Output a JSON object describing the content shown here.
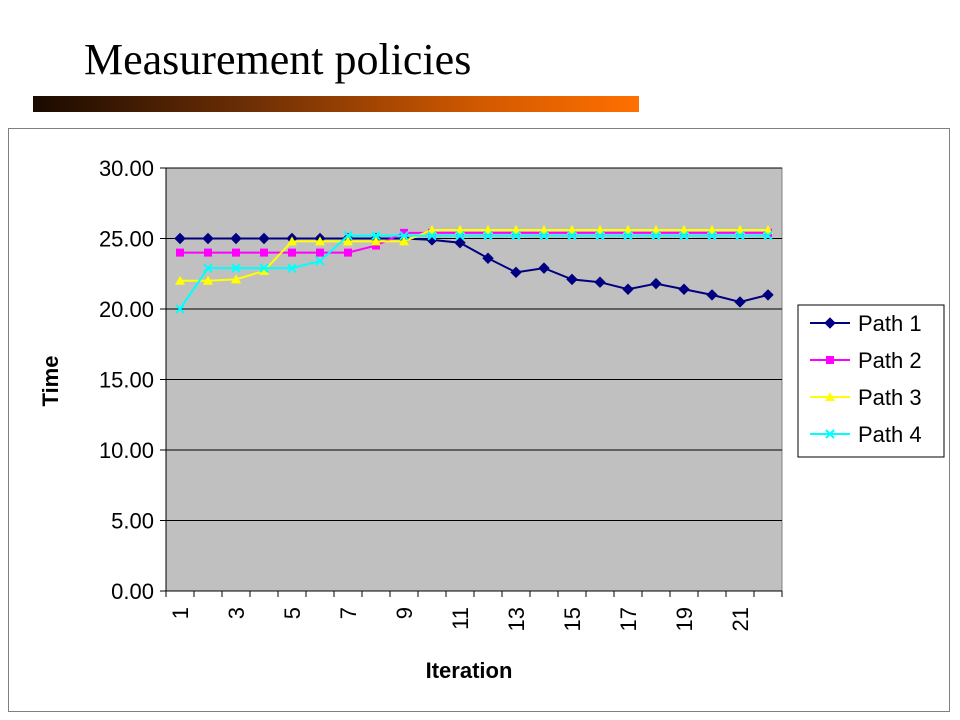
{
  "slide": {
    "title": "Measurement policies"
  },
  "colors": {
    "plot_background": "#C0C0C0",
    "title_bar_start": "#1a0a00",
    "title_bar_end": "#ff7000"
  },
  "chart_data": {
    "type": "line",
    "title": "",
    "xlabel": "Iteration",
    "ylabel": "Time",
    "ylim": [
      0,
      30
    ],
    "y_ticks": [
      "0.00",
      "5.00",
      "10.00",
      "15.00",
      "20.00",
      "25.00",
      "30.00"
    ],
    "x": [
      1,
      2,
      3,
      4,
      5,
      6,
      7,
      8,
      9,
      10,
      11,
      12,
      13,
      14,
      15,
      16,
      17,
      18,
      19,
      20,
      21,
      22
    ],
    "x_tick_labels": [
      "1",
      "3",
      "5",
      "7",
      "9",
      "11",
      "13",
      "15",
      "17",
      "19",
      "21"
    ],
    "grid": "horizontal",
    "legend_position": "right",
    "series": [
      {
        "name": "Path 1",
        "color": "#000080",
        "marker": "diamond",
        "values": [
          25.0,
          25.0,
          25.0,
          25.0,
          25.0,
          25.0,
          25.0,
          25.0,
          25.0,
          24.9,
          24.7,
          23.6,
          22.6,
          22.9,
          22.1,
          21.9,
          21.4,
          21.8,
          21.4,
          21.0,
          20.5,
          21.0
        ]
      },
      {
        "name": "Path 2",
        "color": "#FF00FF",
        "marker": "square",
        "values": [
          24.0,
          24.0,
          24.0,
          24.0,
          24.0,
          24.0,
          24.0,
          24.5,
          25.4,
          25.4,
          25.4,
          25.4,
          25.4,
          25.4,
          25.4,
          25.4,
          25.4,
          25.4,
          25.4,
          25.4,
          25.4,
          25.4
        ]
      },
      {
        "name": "Path 3",
        "color": "#FFFF00",
        "marker": "triangle",
        "values": [
          22.0,
          22.0,
          22.1,
          22.7,
          24.8,
          24.8,
          24.8,
          24.8,
          24.8,
          25.6,
          25.6,
          25.6,
          25.6,
          25.6,
          25.6,
          25.6,
          25.6,
          25.6,
          25.6,
          25.6,
          25.6,
          25.6
        ]
      },
      {
        "name": "Path 4",
        "color": "#00FFFF",
        "marker": "x",
        "values": [
          20.0,
          22.9,
          22.9,
          22.9,
          22.9,
          23.4,
          25.2,
          25.2,
          25.2,
          25.2,
          25.2,
          25.2,
          25.2,
          25.2,
          25.2,
          25.2,
          25.2,
          25.2,
          25.2,
          25.2,
          25.2,
          25.2
        ]
      }
    ]
  }
}
